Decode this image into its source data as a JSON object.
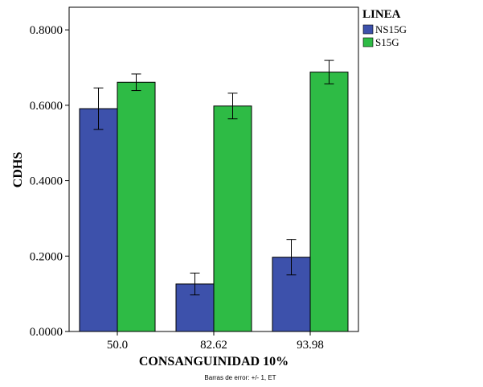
{
  "chart_data": {
    "type": "bar",
    "title": "",
    "categories": [
      "50.0",
      "82.62",
      "93.98"
    ],
    "series": [
      {
        "name": "NS15G",
        "color": "#3d51ab",
        "values": [
          0.591,
          0.126,
          0.197
        ],
        "errors": [
          0.055,
          0.029,
          0.047
        ]
      },
      {
        "name": "S15G",
        "color": "#2ebb45",
        "values": [
          0.661,
          0.598,
          0.688
        ],
        "errors": [
          0.022,
          0.034,
          0.031
        ]
      }
    ],
    "xlabel": "CONSANGUINIDAD 10%",
    "ylabel": "CDHS",
    "ylim": [
      0,
      0.86
    ],
    "yticks": [
      0,
      0.2,
      0.4,
      0.6,
      0.8
    ],
    "ytick_labels": [
      "0.0000",
      "0.2000",
      "0.4000",
      "0.6000",
      "0.8000"
    ],
    "legend_title": "LINEA",
    "legend_position": "top-right",
    "grid": false,
    "footnote": "Barras de error: +/- 1, ET"
  }
}
